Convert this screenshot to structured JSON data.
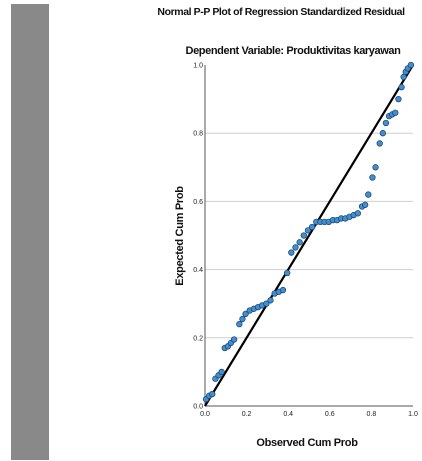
{
  "chart_data": {
    "type": "scatter",
    "title": "Normal P-P Plot of Regression Standardized Residual",
    "subtitle": "Dependent Variable: Produktivitas karyawan",
    "xlabel": "Observed Cum Prob",
    "ylabel": "Expected Cum Prob",
    "xlim": [
      0,
      1
    ],
    "ylim": [
      0,
      1
    ],
    "xticks": [
      "0.0",
      "0.2",
      "0.4",
      "0.6",
      "0.8",
      "1.0"
    ],
    "yticks": [
      "0.0",
      "0.2",
      "0.4",
      "0.6",
      "0.8",
      "1.0"
    ],
    "grid": "horizontal",
    "reference_line": [
      [
        0,
        0
      ],
      [
        1,
        1
      ]
    ],
    "colors": {
      "points": "#3f8fd2",
      "point_edge": "#1d3f66",
      "line": "#000000",
      "grid": "#cfcfcf"
    },
    "points": [
      [
        0.005,
        0.02
      ],
      [
        0.02,
        0.03
      ],
      [
        0.035,
        0.035
      ],
      [
        0.05,
        0.08
      ],
      [
        0.065,
        0.09
      ],
      [
        0.08,
        0.1
      ],
      [
        0.095,
        0.17
      ],
      [
        0.11,
        0.175
      ],
      [
        0.125,
        0.185
      ],
      [
        0.14,
        0.195
      ],
      [
        0.165,
        0.24
      ],
      [
        0.18,
        0.255
      ],
      [
        0.195,
        0.27
      ],
      [
        0.215,
        0.28
      ],
      [
        0.235,
        0.285
      ],
      [
        0.255,
        0.29
      ],
      [
        0.275,
        0.295
      ],
      [
        0.295,
        0.3
      ],
      [
        0.315,
        0.31
      ],
      [
        0.335,
        0.33
      ],
      [
        0.355,
        0.335
      ],
      [
        0.375,
        0.34
      ],
      [
        0.395,
        0.39
      ],
      [
        0.415,
        0.45
      ],
      [
        0.435,
        0.465
      ],
      [
        0.455,
        0.48
      ],
      [
        0.475,
        0.5
      ],
      [
        0.495,
        0.515
      ],
      [
        0.515,
        0.525
      ],
      [
        0.535,
        0.54
      ],
      [
        0.555,
        0.54
      ],
      [
        0.575,
        0.54
      ],
      [
        0.595,
        0.54
      ],
      [
        0.615,
        0.545
      ],
      [
        0.635,
        0.545
      ],
      [
        0.655,
        0.55
      ],
      [
        0.675,
        0.55
      ],
      [
        0.695,
        0.555
      ],
      [
        0.715,
        0.56
      ],
      [
        0.735,
        0.565
      ],
      [
        0.755,
        0.585
      ],
      [
        0.77,
        0.59
      ],
      [
        0.785,
        0.62
      ],
      [
        0.805,
        0.67
      ],
      [
        0.82,
        0.7
      ],
      [
        0.84,
        0.77
      ],
      [
        0.855,
        0.8
      ],
      [
        0.87,
        0.83
      ],
      [
        0.885,
        0.85
      ],
      [
        0.9,
        0.855
      ],
      [
        0.915,
        0.86
      ],
      [
        0.93,
        0.9
      ],
      [
        0.945,
        0.935
      ],
      [
        0.955,
        0.965
      ],
      [
        0.965,
        0.98
      ],
      [
        0.975,
        0.99
      ],
      [
        0.99,
        1.0
      ]
    ]
  }
}
